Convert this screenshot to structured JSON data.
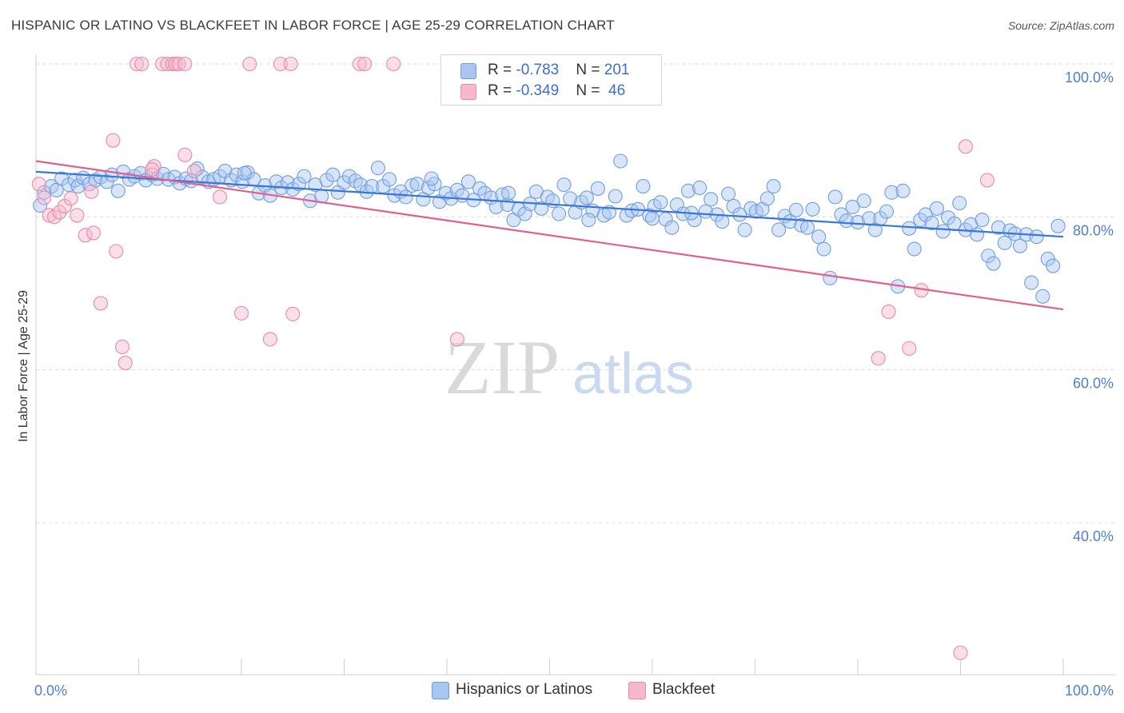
{
  "title": "HISPANIC OR LATINO VS BLACKFEET IN LABOR FORCE | AGE 25-29 CORRELATION CHART",
  "source": "Source: ZipAtlas.com",
  "watermark": {
    "zip": "ZIP",
    "atlas": "atlas"
  },
  "legend": {
    "rows": [
      {
        "r_label": "R = ",
        "r_value": "-0.783",
        "n_label": "N = ",
        "n_value": "201",
        "color": "#a9c6f0",
        "border": "#6f9ee0"
      },
      {
        "r_label": "R = ",
        "r_value": "-0.349",
        "n_label": "N = ",
        "n_value": " 46",
        "color": "#f6b8cb",
        "border": "#e98aa8"
      }
    ]
  },
  "bottom_legend": [
    "Hispanics or Latinos",
    "Blackfeet"
  ],
  "chart_data": {
    "type": "scatter",
    "ylabel": "In Labor Force | Age 25-29",
    "xlim": [
      0,
      100
    ],
    "ylim": [
      18,
      100
    ],
    "x_tick_labels": [
      "0.0%",
      "100.0%"
    ],
    "y_ticks": [
      {
        "value": 100,
        "label": "100.0%"
      },
      {
        "value": 80,
        "label": "80.0%"
      },
      {
        "value": 60,
        "label": "60.0%"
      },
      {
        "value": 40,
        "label": "40.0%"
      }
    ],
    "grid": true,
    "series": [
      {
        "name": "Hispanics or Latinos",
        "color": "#6f9ee0",
        "fill": "rgba(169,198,240,0.45)",
        "trend": {
          "x": [
            0,
            100
          ],
          "y": [
            85.9,
            77.4
          ],
          "color": "#3a76d6"
        },
        "points": [
          [
            0.4,
            81.5
          ],
          [
            0.8,
            83.2
          ],
          [
            1.5,
            84.0
          ],
          [
            2.0,
            83.5
          ],
          [
            2.5,
            85.0
          ],
          [
            3.2,
            84.2
          ],
          [
            3.8,
            84.8
          ],
          [
            4.1,
            84.0
          ],
          [
            4.6,
            85.1
          ],
          [
            5.2,
            84.3
          ],
          [
            5.8,
            84.8
          ],
          [
            6.3,
            85.2
          ],
          [
            6.9,
            84.6
          ],
          [
            7.4,
            85.5
          ],
          [
            8.0,
            83.4
          ],
          [
            8.5,
            85.9
          ],
          [
            9.1,
            84.9
          ],
          [
            9.6,
            85.3
          ],
          [
            10.2,
            85.7
          ],
          [
            10.7,
            84.8
          ],
          [
            11.3,
            85.5
          ],
          [
            11.8,
            85.0
          ],
          [
            12.4,
            85.6
          ],
          [
            12.9,
            84.9
          ],
          [
            13.5,
            85.2
          ],
          [
            14.0,
            84.4
          ],
          [
            14.6,
            85.0
          ],
          [
            15.1,
            84.7
          ],
          [
            15.7,
            86.3
          ],
          [
            16.2,
            85.2
          ],
          [
            16.8,
            84.6
          ],
          [
            17.3,
            84.9
          ],
          [
            17.9,
            85.3
          ],
          [
            18.4,
            86.0
          ],
          [
            19.0,
            84.8
          ],
          [
            19.5,
            85.5
          ],
          [
            20.1,
            84.6
          ],
          [
            20.6,
            85.8
          ],
          [
            21.2,
            84.9
          ],
          [
            21.7,
            83.1
          ],
          [
            22.3,
            84.1
          ],
          [
            22.8,
            82.8
          ],
          [
            23.4,
            84.6
          ],
          [
            23.9,
            83.8
          ],
          [
            24.5,
            84.5
          ],
          [
            25.0,
            83.6
          ],
          [
            25.6,
            84.3
          ],
          [
            26.1,
            85.3
          ],
          [
            26.7,
            82.1
          ],
          [
            27.2,
            84.2
          ],
          [
            27.8,
            82.7
          ],
          [
            28.3,
            84.8
          ],
          [
            28.9,
            85.5
          ],
          [
            29.4,
            83.2
          ],
          [
            30.0,
            84.5
          ],
          [
            30.5,
            85.3
          ],
          [
            31.1,
            84.7
          ],
          [
            31.6,
            84.2
          ],
          [
            32.2,
            83.3
          ],
          [
            32.7,
            84.0
          ],
          [
            33.3,
            86.4
          ],
          [
            33.8,
            84.0
          ],
          [
            34.4,
            84.9
          ],
          [
            34.9,
            82.8
          ],
          [
            35.5,
            83.3
          ],
          [
            36.0,
            82.6
          ],
          [
            36.6,
            84.1
          ],
          [
            37.1,
            84.3
          ],
          [
            37.7,
            82.3
          ],
          [
            38.2,
            83.8
          ],
          [
            38.8,
            84.3
          ],
          [
            39.3,
            82.0
          ],
          [
            39.9,
            83.1
          ],
          [
            40.4,
            82.4
          ],
          [
            41.0,
            83.5
          ],
          [
            41.5,
            82.8
          ],
          [
            42.1,
            84.6
          ],
          [
            42.6,
            82.2
          ],
          [
            43.2,
            83.7
          ],
          [
            43.7,
            83.1
          ],
          [
            44.3,
            82.5
          ],
          [
            44.8,
            81.3
          ],
          [
            45.4,
            82.9
          ],
          [
            45.9,
            81.6
          ],
          [
            46.5,
            79.6
          ],
          [
            47.0,
            81.0
          ],
          [
            47.6,
            80.4
          ],
          [
            48.1,
            81.7
          ],
          [
            48.7,
            83.3
          ],
          [
            49.2,
            81.1
          ],
          [
            49.8,
            82.6
          ],
          [
            50.3,
            82.1
          ],
          [
            50.9,
            80.4
          ],
          [
            51.4,
            84.2
          ],
          [
            52.0,
            82.4
          ],
          [
            52.5,
            80.6
          ],
          [
            53.1,
            81.9
          ],
          [
            53.6,
            82.5
          ],
          [
            54.2,
            80.8
          ],
          [
            54.7,
            83.7
          ],
          [
            55.3,
            80.2
          ],
          [
            55.8,
            80.6
          ],
          [
            56.4,
            82.7
          ],
          [
            56.9,
            87.3
          ],
          [
            57.5,
            80.2
          ],
          [
            58.0,
            80.8
          ],
          [
            58.6,
            81.0
          ],
          [
            59.1,
            84.0
          ],
          [
            59.7,
            80.2
          ],
          [
            60.2,
            81.4
          ],
          [
            60.8,
            81.9
          ],
          [
            61.3,
            79.7
          ],
          [
            61.9,
            78.6
          ],
          [
            62.4,
            81.6
          ],
          [
            63.0,
            80.4
          ],
          [
            63.5,
            83.4
          ],
          [
            64.1,
            79.6
          ],
          [
            64.6,
            83.8
          ],
          [
            65.2,
            80.7
          ],
          [
            65.7,
            82.3
          ],
          [
            66.3,
            80.3
          ],
          [
            66.8,
            79.4
          ],
          [
            67.4,
            83.0
          ],
          [
            67.9,
            81.4
          ],
          [
            68.5,
            80.3
          ],
          [
            69.0,
            78.3
          ],
          [
            69.6,
            81.1
          ],
          [
            70.1,
            80.7
          ],
          [
            70.7,
            81.0
          ],
          [
            71.2,
            82.4
          ],
          [
            71.8,
            84.0
          ],
          [
            72.3,
            78.3
          ],
          [
            72.9,
            80.1
          ],
          [
            73.4,
            79.4
          ],
          [
            74.0,
            80.9
          ],
          [
            74.5,
            78.9
          ],
          [
            75.1,
            78.6
          ],
          [
            75.6,
            81.0
          ],
          [
            76.2,
            77.4
          ],
          [
            76.7,
            75.8
          ],
          [
            77.3,
            72.0
          ],
          [
            77.8,
            82.6
          ],
          [
            78.4,
            80.3
          ],
          [
            78.9,
            79.5
          ],
          [
            79.5,
            81.3
          ],
          [
            80.0,
            79.3
          ],
          [
            80.6,
            82.1
          ],
          [
            81.1,
            79.8
          ],
          [
            81.7,
            78.3
          ],
          [
            82.2,
            79.8
          ],
          [
            82.8,
            80.7
          ],
          [
            83.3,
            83.2
          ],
          [
            83.9,
            70.9
          ],
          [
            84.4,
            83.4
          ],
          [
            85.0,
            78.5
          ],
          [
            85.5,
            75.8
          ],
          [
            86.1,
            79.6
          ],
          [
            86.6,
            80.3
          ],
          [
            87.2,
            79.2
          ],
          [
            87.7,
            81.1
          ],
          [
            88.3,
            78.1
          ],
          [
            88.8,
            79.9
          ],
          [
            89.4,
            79.1
          ],
          [
            89.9,
            81.8
          ],
          [
            90.5,
            78.3
          ],
          [
            91.0,
            79.0
          ],
          [
            91.6,
            77.7
          ],
          [
            92.1,
            79.6
          ],
          [
            92.7,
            74.9
          ],
          [
            93.2,
            73.9
          ],
          [
            93.7,
            78.6
          ],
          [
            94.3,
            76.6
          ],
          [
            94.8,
            78.2
          ],
          [
            95.3,
            77.8
          ],
          [
            95.8,
            76.2
          ],
          [
            96.4,
            77.7
          ],
          [
            96.9,
            71.4
          ],
          [
            97.4,
            77.4
          ],
          [
            98.0,
            69.6
          ],
          [
            98.5,
            74.5
          ],
          [
            99.0,
            73.6
          ],
          [
            99.5,
            78.8
          ],
          [
            63.8,
            80.5
          ],
          [
            38.5,
            85.0
          ],
          [
            20.3,
            85.7
          ],
          [
            46.0,
            83.1
          ],
          [
            53.8,
            79.6
          ],
          [
            60.0,
            79.8
          ]
        ]
      },
      {
        "name": "Blackfeet",
        "color": "#e98aa8",
        "fill": "rgba(246,184,203,0.45)",
        "trend": {
          "x": [
            0,
            100
          ],
          "y": [
            87.3,
            67.9
          ],
          "color": "#e35f8a"
        },
        "points": [
          [
            0.3,
            84.3
          ],
          [
            0.8,
            82.5
          ],
          [
            1.3,
            80.2
          ],
          [
            1.8,
            80.0
          ],
          [
            2.3,
            80.6
          ],
          [
            2.8,
            81.4
          ],
          [
            3.4,
            82.4
          ],
          [
            4.0,
            80.2
          ],
          [
            4.8,
            77.6
          ],
          [
            5.4,
            83.3
          ],
          [
            5.6,
            77.9
          ],
          [
            6.3,
            68.7
          ],
          [
            7.5,
            90.0
          ],
          [
            7.8,
            75.5
          ],
          [
            8.4,
            63.0
          ],
          [
            8.7,
            60.9
          ],
          [
            9.8,
            100.0
          ],
          [
            10.3,
            100.0
          ],
          [
            12.3,
            100.0
          ],
          [
            12.8,
            100.0
          ],
          [
            13.3,
            100.0
          ],
          [
            13.6,
            100.0
          ],
          [
            13.9,
            100.0
          ],
          [
            14.5,
            100.0
          ],
          [
            14.5,
            88.1
          ],
          [
            11.5,
            86.6
          ],
          [
            11.3,
            86.2
          ],
          [
            15.4,
            86.0
          ],
          [
            17.9,
            82.6
          ],
          [
            20.0,
            67.4
          ],
          [
            20.8,
            100.0
          ],
          [
            22.8,
            64.0
          ],
          [
            23.8,
            100.0
          ],
          [
            24.8,
            100.0
          ],
          [
            25.0,
            67.3
          ],
          [
            31.5,
            100.0
          ],
          [
            32.0,
            100.0
          ],
          [
            34.8,
            100.0
          ],
          [
            41.0,
            64.0
          ],
          [
            82.0,
            61.5
          ],
          [
            83.0,
            67.6
          ],
          [
            85.0,
            62.8
          ],
          [
            86.2,
            70.4
          ],
          [
            90.5,
            89.2
          ],
          [
            92.6,
            84.8
          ],
          [
            90.0,
            23.0
          ]
        ]
      }
    ]
  }
}
